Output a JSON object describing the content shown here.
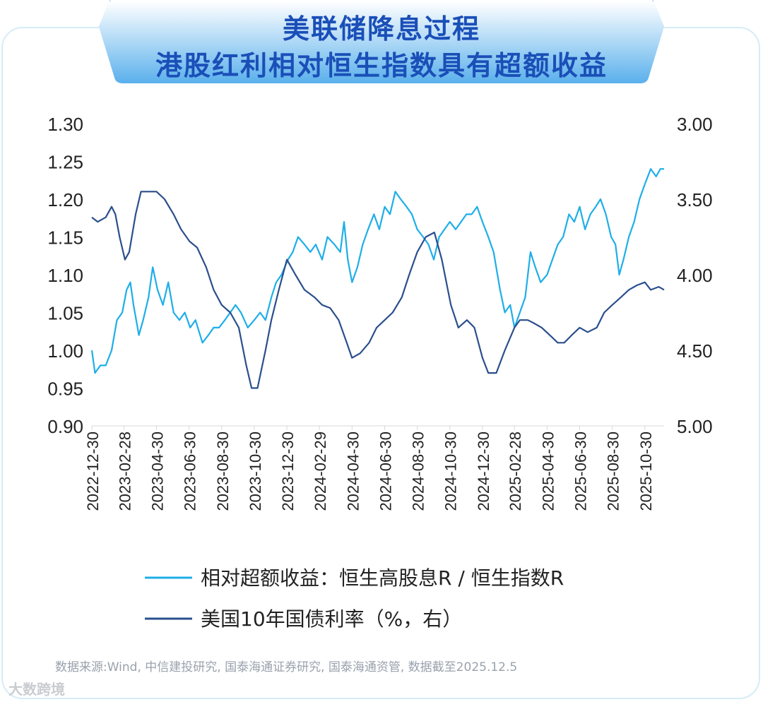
{
  "title": {
    "line1": "美联储降息过程",
    "line2": "港股红利相对恒生指数具有超额收益"
  },
  "colors": {
    "title_text": "#1a4fb8",
    "banner_top": "#ffffff",
    "banner_bottom": "#5ab0ec",
    "excess_series": "#1eaee8",
    "yield_series": "#2b4f8c",
    "axis_text": "#222222"
  },
  "chart_data": {
    "type": "line",
    "x_tick_labels": [
      "2022-12-30",
      "2023-02-28",
      "2023-04-30",
      "2023-06-30",
      "2023-08-30",
      "2023-10-30",
      "2023-12-30",
      "2024-02-29",
      "2024-04-30",
      "2024-06-30",
      "2024-08-30",
      "2024-10-30",
      "2024-12-30",
      "2025-02-28",
      "2025-04-30",
      "2025-06-30",
      "2025-08-30",
      "2025-10-30"
    ],
    "x_range": [
      "2022-12-30",
      "2025-12-05"
    ],
    "left_axis": {
      "ticks": [
        "1.30",
        "1.25",
        "1.20",
        "1.15",
        "1.10",
        "1.05",
        "1.00",
        "0.95",
        "0.90"
      ],
      "ylim": [
        0.9,
        1.3
      ]
    },
    "right_axis": {
      "ticks": [
        "3.00",
        "3.50",
        "4.00",
        "4.50",
        "5.00"
      ],
      "ylim": [
        5.0,
        3.0
      ],
      "inverted": true
    },
    "grid": false,
    "legend_position": "bottom",
    "series": [
      {
        "name": "相对超额收益：恒生高股息R /   恒生指数R",
        "axis": "left",
        "points": [
          [
            "2022-12-30",
            1.0
          ],
          [
            "2023-01-05",
            0.97
          ],
          [
            "2023-01-15",
            0.98
          ],
          [
            "2023-01-25",
            0.98
          ],
          [
            "2023-02-05",
            1.0
          ],
          [
            "2023-02-15",
            1.04
          ],
          [
            "2023-02-25",
            1.05
          ],
          [
            "2023-03-05",
            1.08
          ],
          [
            "2023-03-12",
            1.09
          ],
          [
            "2023-03-18",
            1.06
          ],
          [
            "2023-03-28",
            1.02
          ],
          [
            "2023-04-05",
            1.04
          ],
          [
            "2023-04-15",
            1.07
          ],
          [
            "2023-04-23",
            1.11
          ],
          [
            "2023-05-02",
            1.08
          ],
          [
            "2023-05-12",
            1.06
          ],
          [
            "2023-05-22",
            1.09
          ],
          [
            "2023-06-01",
            1.05
          ],
          [
            "2023-06-12",
            1.04
          ],
          [
            "2023-06-22",
            1.05
          ],
          [
            "2023-07-02",
            1.03
          ],
          [
            "2023-07-12",
            1.04
          ],
          [
            "2023-07-25",
            1.01
          ],
          [
            "2023-08-05",
            1.02
          ],
          [
            "2023-08-15",
            1.03
          ],
          [
            "2023-08-25",
            1.03
          ],
          [
            "2023-09-05",
            1.04
          ],
          [
            "2023-09-15",
            1.05
          ],
          [
            "2023-09-25",
            1.06
          ],
          [
            "2023-10-05",
            1.05
          ],
          [
            "2023-10-18",
            1.03
          ],
          [
            "2023-10-30",
            1.04
          ],
          [
            "2023-11-10",
            1.05
          ],
          [
            "2023-11-20",
            1.04
          ],
          [
            "2023-12-01",
            1.07
          ],
          [
            "2023-12-10",
            1.09
          ],
          [
            "2023-12-20",
            1.1
          ],
          [
            "2024-01-01",
            1.12
          ],
          [
            "2024-01-10",
            1.13
          ],
          [
            "2024-01-20",
            1.15
          ],
          [
            "2024-02-01",
            1.14
          ],
          [
            "2024-02-12",
            1.13
          ],
          [
            "2024-02-22",
            1.14
          ],
          [
            "2024-03-05",
            1.12
          ],
          [
            "2024-03-15",
            1.15
          ],
          [
            "2024-03-28",
            1.14
          ],
          [
            "2024-04-08",
            1.13
          ],
          [
            "2024-04-15",
            1.17
          ],
          [
            "2024-04-22",
            1.12
          ],
          [
            "2024-04-30",
            1.09
          ],
          [
            "2024-05-10",
            1.11
          ],
          [
            "2024-05-20",
            1.14
          ],
          [
            "2024-05-30",
            1.16
          ],
          [
            "2024-06-10",
            1.18
          ],
          [
            "2024-06-20",
            1.16
          ],
          [
            "2024-06-30",
            1.19
          ],
          [
            "2024-07-10",
            1.18
          ],
          [
            "2024-07-20",
            1.21
          ],
          [
            "2024-07-30",
            1.2
          ],
          [
            "2024-08-10",
            1.19
          ],
          [
            "2024-08-20",
            1.18
          ],
          [
            "2024-08-30",
            1.16
          ],
          [
            "2024-09-10",
            1.15
          ],
          [
            "2024-09-20",
            1.14
          ],
          [
            "2024-09-30",
            1.12
          ],
          [
            "2024-10-10",
            1.15
          ],
          [
            "2024-10-20",
            1.16
          ],
          [
            "2024-10-30",
            1.17
          ],
          [
            "2024-11-10",
            1.16
          ],
          [
            "2024-11-20",
            1.17
          ],
          [
            "2024-11-30",
            1.18
          ],
          [
            "2024-12-10",
            1.18
          ],
          [
            "2024-12-20",
            1.19
          ],
          [
            "2024-12-30",
            1.17
          ],
          [
            "2025-01-10",
            1.15
          ],
          [
            "2025-01-20",
            1.13
          ],
          [
            "2025-02-01",
            1.08
          ],
          [
            "2025-02-10",
            1.05
          ],
          [
            "2025-02-20",
            1.06
          ],
          [
            "2025-02-28",
            1.03
          ],
          [
            "2025-03-10",
            1.05
          ],
          [
            "2025-03-20",
            1.07
          ],
          [
            "2025-03-30",
            1.13
          ],
          [
            "2025-04-08",
            1.11
          ],
          [
            "2025-04-18",
            1.09
          ],
          [
            "2025-04-30",
            1.1
          ],
          [
            "2025-05-10",
            1.12
          ],
          [
            "2025-05-20",
            1.14
          ],
          [
            "2025-05-30",
            1.15
          ],
          [
            "2025-06-10",
            1.18
          ],
          [
            "2025-06-20",
            1.17
          ],
          [
            "2025-06-30",
            1.19
          ],
          [
            "2025-07-10",
            1.16
          ],
          [
            "2025-07-20",
            1.18
          ],
          [
            "2025-07-30",
            1.19
          ],
          [
            "2025-08-08",
            1.2
          ],
          [
            "2025-08-18",
            1.18
          ],
          [
            "2025-08-28",
            1.15
          ],
          [
            "2025-09-05",
            1.14
          ],
          [
            "2025-09-12",
            1.1
          ],
          [
            "2025-09-20",
            1.12
          ],
          [
            "2025-09-30",
            1.15
          ],
          [
            "2025-10-10",
            1.17
          ],
          [
            "2025-10-20",
            1.2
          ],
          [
            "2025-10-30",
            1.22
          ],
          [
            "2025-11-10",
            1.24
          ],
          [
            "2025-11-20",
            1.23
          ],
          [
            "2025-11-28",
            1.24
          ],
          [
            "2025-12-05",
            1.24
          ]
        ]
      },
      {
        "name": "美国10年国债利率（%，右）",
        "axis": "right",
        "points": [
          [
            "2022-12-30",
            3.62
          ],
          [
            "2023-01-10",
            3.65
          ],
          [
            "2023-01-25",
            3.62
          ],
          [
            "2023-02-05",
            3.55
          ],
          [
            "2023-02-12",
            3.6
          ],
          [
            "2023-02-20",
            3.75
          ],
          [
            "2023-03-02",
            3.9
          ],
          [
            "2023-03-10",
            3.85
          ],
          [
            "2023-03-22",
            3.6
          ],
          [
            "2023-04-01",
            3.45
          ],
          [
            "2023-04-15",
            3.45
          ],
          [
            "2023-04-30",
            3.45
          ],
          [
            "2023-05-15",
            3.5
          ],
          [
            "2023-06-01",
            3.6
          ],
          [
            "2023-06-15",
            3.7
          ],
          [
            "2023-07-01",
            3.78
          ],
          [
            "2023-07-15",
            3.82
          ],
          [
            "2023-08-01",
            3.95
          ],
          [
            "2023-08-15",
            4.1
          ],
          [
            "2023-08-30",
            4.2
          ],
          [
            "2023-09-15",
            4.25
          ],
          [
            "2023-10-01",
            4.35
          ],
          [
            "2023-10-15",
            4.6
          ],
          [
            "2023-10-25",
            4.75
          ],
          [
            "2023-11-05",
            4.75
          ],
          [
            "2023-11-20",
            4.5
          ],
          [
            "2023-12-01",
            4.3
          ],
          [
            "2023-12-15",
            4.1
          ],
          [
            "2023-12-30",
            3.9
          ],
          [
            "2024-01-15",
            4.0
          ],
          [
            "2024-02-01",
            4.1
          ],
          [
            "2024-02-20",
            4.15
          ],
          [
            "2024-03-05",
            4.2
          ],
          [
            "2024-03-20",
            4.22
          ],
          [
            "2024-04-05",
            4.3
          ],
          [
            "2024-04-20",
            4.45
          ],
          [
            "2024-04-30",
            4.55
          ],
          [
            "2024-05-15",
            4.52
          ],
          [
            "2024-06-01",
            4.45
          ],
          [
            "2024-06-15",
            4.35
          ],
          [
            "2024-06-30",
            4.3
          ],
          [
            "2024-07-15",
            4.25
          ],
          [
            "2024-08-01",
            4.15
          ],
          [
            "2024-08-15",
            4.0
          ],
          [
            "2024-08-30",
            3.85
          ],
          [
            "2024-09-15",
            3.75
          ],
          [
            "2024-10-01",
            3.72
          ],
          [
            "2024-10-15",
            3.9
          ],
          [
            "2024-11-01",
            4.2
          ],
          [
            "2024-11-15",
            4.35
          ],
          [
            "2024-12-01",
            4.3
          ],
          [
            "2024-12-15",
            4.35
          ],
          [
            "2024-12-30",
            4.55
          ],
          [
            "2025-01-10",
            4.65
          ],
          [
            "2025-01-25",
            4.65
          ],
          [
            "2025-02-10",
            4.5
          ],
          [
            "2025-02-28",
            4.35
          ],
          [
            "2025-03-10",
            4.3
          ],
          [
            "2025-03-25",
            4.3
          ],
          [
            "2025-04-05",
            4.32
          ],
          [
            "2025-04-20",
            4.35
          ],
          [
            "2025-05-05",
            4.4
          ],
          [
            "2025-05-20",
            4.45
          ],
          [
            "2025-06-01",
            4.45
          ],
          [
            "2025-06-15",
            4.4
          ],
          [
            "2025-06-30",
            4.35
          ],
          [
            "2025-07-15",
            4.38
          ],
          [
            "2025-08-01",
            4.35
          ],
          [
            "2025-08-15",
            4.25
          ],
          [
            "2025-08-30",
            4.2
          ],
          [
            "2025-09-15",
            4.15
          ],
          [
            "2025-09-30",
            4.1
          ],
          [
            "2025-10-15",
            4.07
          ],
          [
            "2025-10-30",
            4.05
          ],
          [
            "2025-11-10",
            4.1
          ],
          [
            "2025-11-25",
            4.08
          ],
          [
            "2025-12-05",
            4.1
          ]
        ]
      }
    ]
  },
  "legend": {
    "item1": "相对超额收益：恒生高股息R /   恒生指数R",
    "item2": "美国10年国债利率（%，右）"
  },
  "source": "数据来源:Wind, 中信建投研究, 国泰海通证券研究, 国泰海通资管, 数据截至2025.12.5",
  "watermark": "大数跨境"
}
